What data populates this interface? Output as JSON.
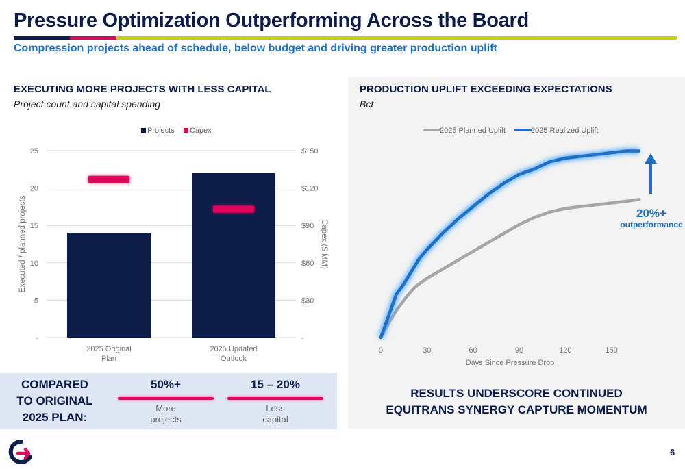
{
  "header": {
    "title": "Pressure Optimization Outperforming Across the Board",
    "subtitle": "Compression projects ahead of schedule, below budget and driving greater production uplift"
  },
  "left_section": {
    "heading": "EXECUTING MORE PROJECTS WITH LESS CAPITAL",
    "subheading": "Project count and capital spending"
  },
  "right_section": {
    "heading": "PRODUCTION UPLIFT EXCEEDING EXPECTATIONS",
    "subheading": "Bcf"
  },
  "comparison": {
    "label_lines": [
      "COMPARED",
      "TO ORIGINAL",
      "2025 PLAN:"
    ],
    "metrics": [
      {
        "value": "50%+",
        "desc_lines": [
          "More",
          "projects"
        ]
      },
      {
        "value": "15 – 20%",
        "desc_lines": [
          "Less",
          "capital"
        ]
      }
    ]
  },
  "results_lines": [
    "RESULTS UNDERSCORE CONTINUED",
    "EQUITRANS SYNERGY CAPTURE MOMENTUM"
  ],
  "page_number": "6",
  "colors": {
    "navy": "#0b1c48",
    "pink": "#e2065a",
    "lime": "#c6d500",
    "blue": "#1f6fc2",
    "gray": "#a6a6a6"
  },
  "chart_data": [
    {
      "type": "bar",
      "categories": [
        "2025 Original Plan",
        "2025 Updated Outlook"
      ],
      "category_label_lines": [
        [
          "2025 Original",
          "Plan"
        ],
        [
          "2025 Updated",
          "Outlook"
        ]
      ],
      "legend": [
        "Projects",
        "Capex"
      ],
      "legend_position": "top",
      "series": [
        {
          "name": "Projects",
          "axis": "left",
          "mark": "bar",
          "values": [
            14,
            22
          ],
          "color": "#0b1c48"
        },
        {
          "name": "Capex",
          "axis": "right",
          "mark": "dash",
          "values": [
            127,
            103
          ],
          "color": "#e2065a"
        }
      ],
      "ylabel": "Executed / planned projects",
      "y2label": "Capex ($ MM)",
      "ylim": [
        0,
        25
      ],
      "y2lim": [
        0,
        150
      ],
      "y_ticks": [
        0,
        5,
        10,
        15,
        20,
        25
      ],
      "y_tick_labels": [
        "-",
        "5",
        "10",
        "15",
        "20",
        "25"
      ],
      "y2_ticks": [
        0,
        30,
        60,
        90,
        120,
        150
      ],
      "y2_tick_labels": [
        "-",
        "$30",
        "$60",
        "$90",
        "$120",
        "$150"
      ],
      "grid": true
    },
    {
      "type": "line",
      "xlabel": "Days Since Pressure Drop",
      "ylabel": "",
      "xlim": [
        0,
        168
      ],
      "ylim": [
        0,
        1
      ],
      "x_ticks": [
        0,
        30,
        60,
        90,
        120,
        150
      ],
      "legend": [
        "2025 Planned Uplift",
        "2025 Realized Uplift"
      ],
      "legend_position": "top",
      "grid": false,
      "series": [
        {
          "name": "2025 Planned Uplift",
          "color": "#a6a6a6",
          "x": [
            0,
            5,
            10,
            16,
            22,
            30,
            40,
            50,
            60,
            70,
            80,
            90,
            100,
            110,
            120,
            130,
            140,
            150,
            160,
            168
          ],
          "y": [
            0,
            0.08,
            0.15,
            0.22,
            0.28,
            0.33,
            0.38,
            0.43,
            0.48,
            0.53,
            0.58,
            0.63,
            0.67,
            0.7,
            0.72,
            0.73,
            0.74,
            0.75,
            0.76,
            0.77
          ]
        },
        {
          "name": "2025 Realized Uplift",
          "color": "#1f6fc2",
          "x": [
            0,
            5,
            10,
            15,
            20,
            25,
            30,
            40,
            50,
            60,
            70,
            80,
            90,
            100,
            110,
            120,
            130,
            140,
            150,
            160,
            168
          ],
          "y": [
            0,
            0.12,
            0.24,
            0.3,
            0.37,
            0.44,
            0.49,
            0.58,
            0.66,
            0.73,
            0.8,
            0.86,
            0.91,
            0.94,
            0.98,
            1.0,
            1.01,
            1.02,
            1.03,
            1.04,
            1.04
          ]
        }
      ],
      "annotation": {
        "value": "20%+",
        "text": "outperformance"
      }
    }
  ]
}
